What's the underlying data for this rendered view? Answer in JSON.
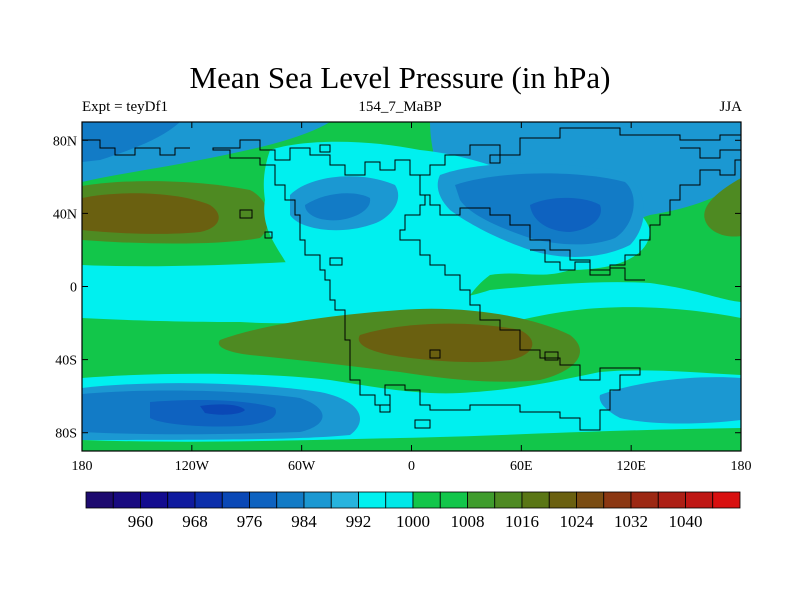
{
  "plot": {
    "title": "Mean Sea Level Pressure (in hPa)",
    "left_string": "Expt = teyDf1",
    "center_string": "154_7_MaBP",
    "right_string": "JJA",
    "field": "Mean Sea Level Pressure",
    "units": "hPa"
  },
  "axes": {
    "lon_range": [
      -180,
      180
    ],
    "lat_range": [
      -90,
      90
    ],
    "x_ticks": [
      {
        "value": -180,
        "label": "180"
      },
      {
        "value": -120,
        "label": "120W"
      },
      {
        "value": -60,
        "label": "60W"
      },
      {
        "value": 0,
        "label": "0"
      },
      {
        "value": 60,
        "label": "60E"
      },
      {
        "value": 120,
        "label": "120E"
      },
      {
        "value": 180,
        "label": "180"
      }
    ],
    "y_ticks": [
      {
        "value": 80,
        "label": "80N"
      },
      {
        "value": 40,
        "label": "40N"
      },
      {
        "value": 0,
        "label": "0"
      },
      {
        "value": -40,
        "label": "40S"
      },
      {
        "value": -80,
        "label": "80S"
      }
    ]
  },
  "colorbar": {
    "colors": [
      "#1d0a6f",
      "#180a80",
      "#130c8f",
      "#0f1a9e",
      "#0b2eab",
      "#0a48b6",
      "#0e62c0",
      "#127bc6",
      "#1b98d2",
      "#27b4de",
      "#00f0ef",
      "#00e8e8",
      "#12c64a",
      "#12c64a",
      "#3f9c2d",
      "#4e8a22",
      "#5a7615",
      "#6a6010",
      "#7a4c12",
      "#8b3712",
      "#9c2813",
      "#ad1f15",
      "#bf1714",
      "#d81010"
    ],
    "labels": [
      {
        "index": 2,
        "text": "960"
      },
      {
        "index": 4,
        "text": "968"
      },
      {
        "index": 6,
        "text": "976"
      },
      {
        "index": 8,
        "text": "984"
      },
      {
        "index": 10,
        "text": "992"
      },
      {
        "index": 12,
        "text": "1000"
      },
      {
        "index": 14,
        "text": "1008"
      },
      {
        "index": 16,
        "text": "1016"
      },
      {
        "index": 18,
        "text": "1024"
      },
      {
        "index": 20,
        "text": "1032"
      },
      {
        "index": 22,
        "text": "1040"
      }
    ]
  },
  "palette": {
    "green": "#12c64a",
    "light_cyan": "#00f0ef",
    "mid_cyan": "#1b98d2",
    "light_blue": "#127bc6",
    "blue": "#0e62c0",
    "deep_blue": "#0a48b6",
    "navy": "#0b2eab",
    "olive": "#4e8a22",
    "brown": "#6a6010",
    "outline": "#000000"
  }
}
